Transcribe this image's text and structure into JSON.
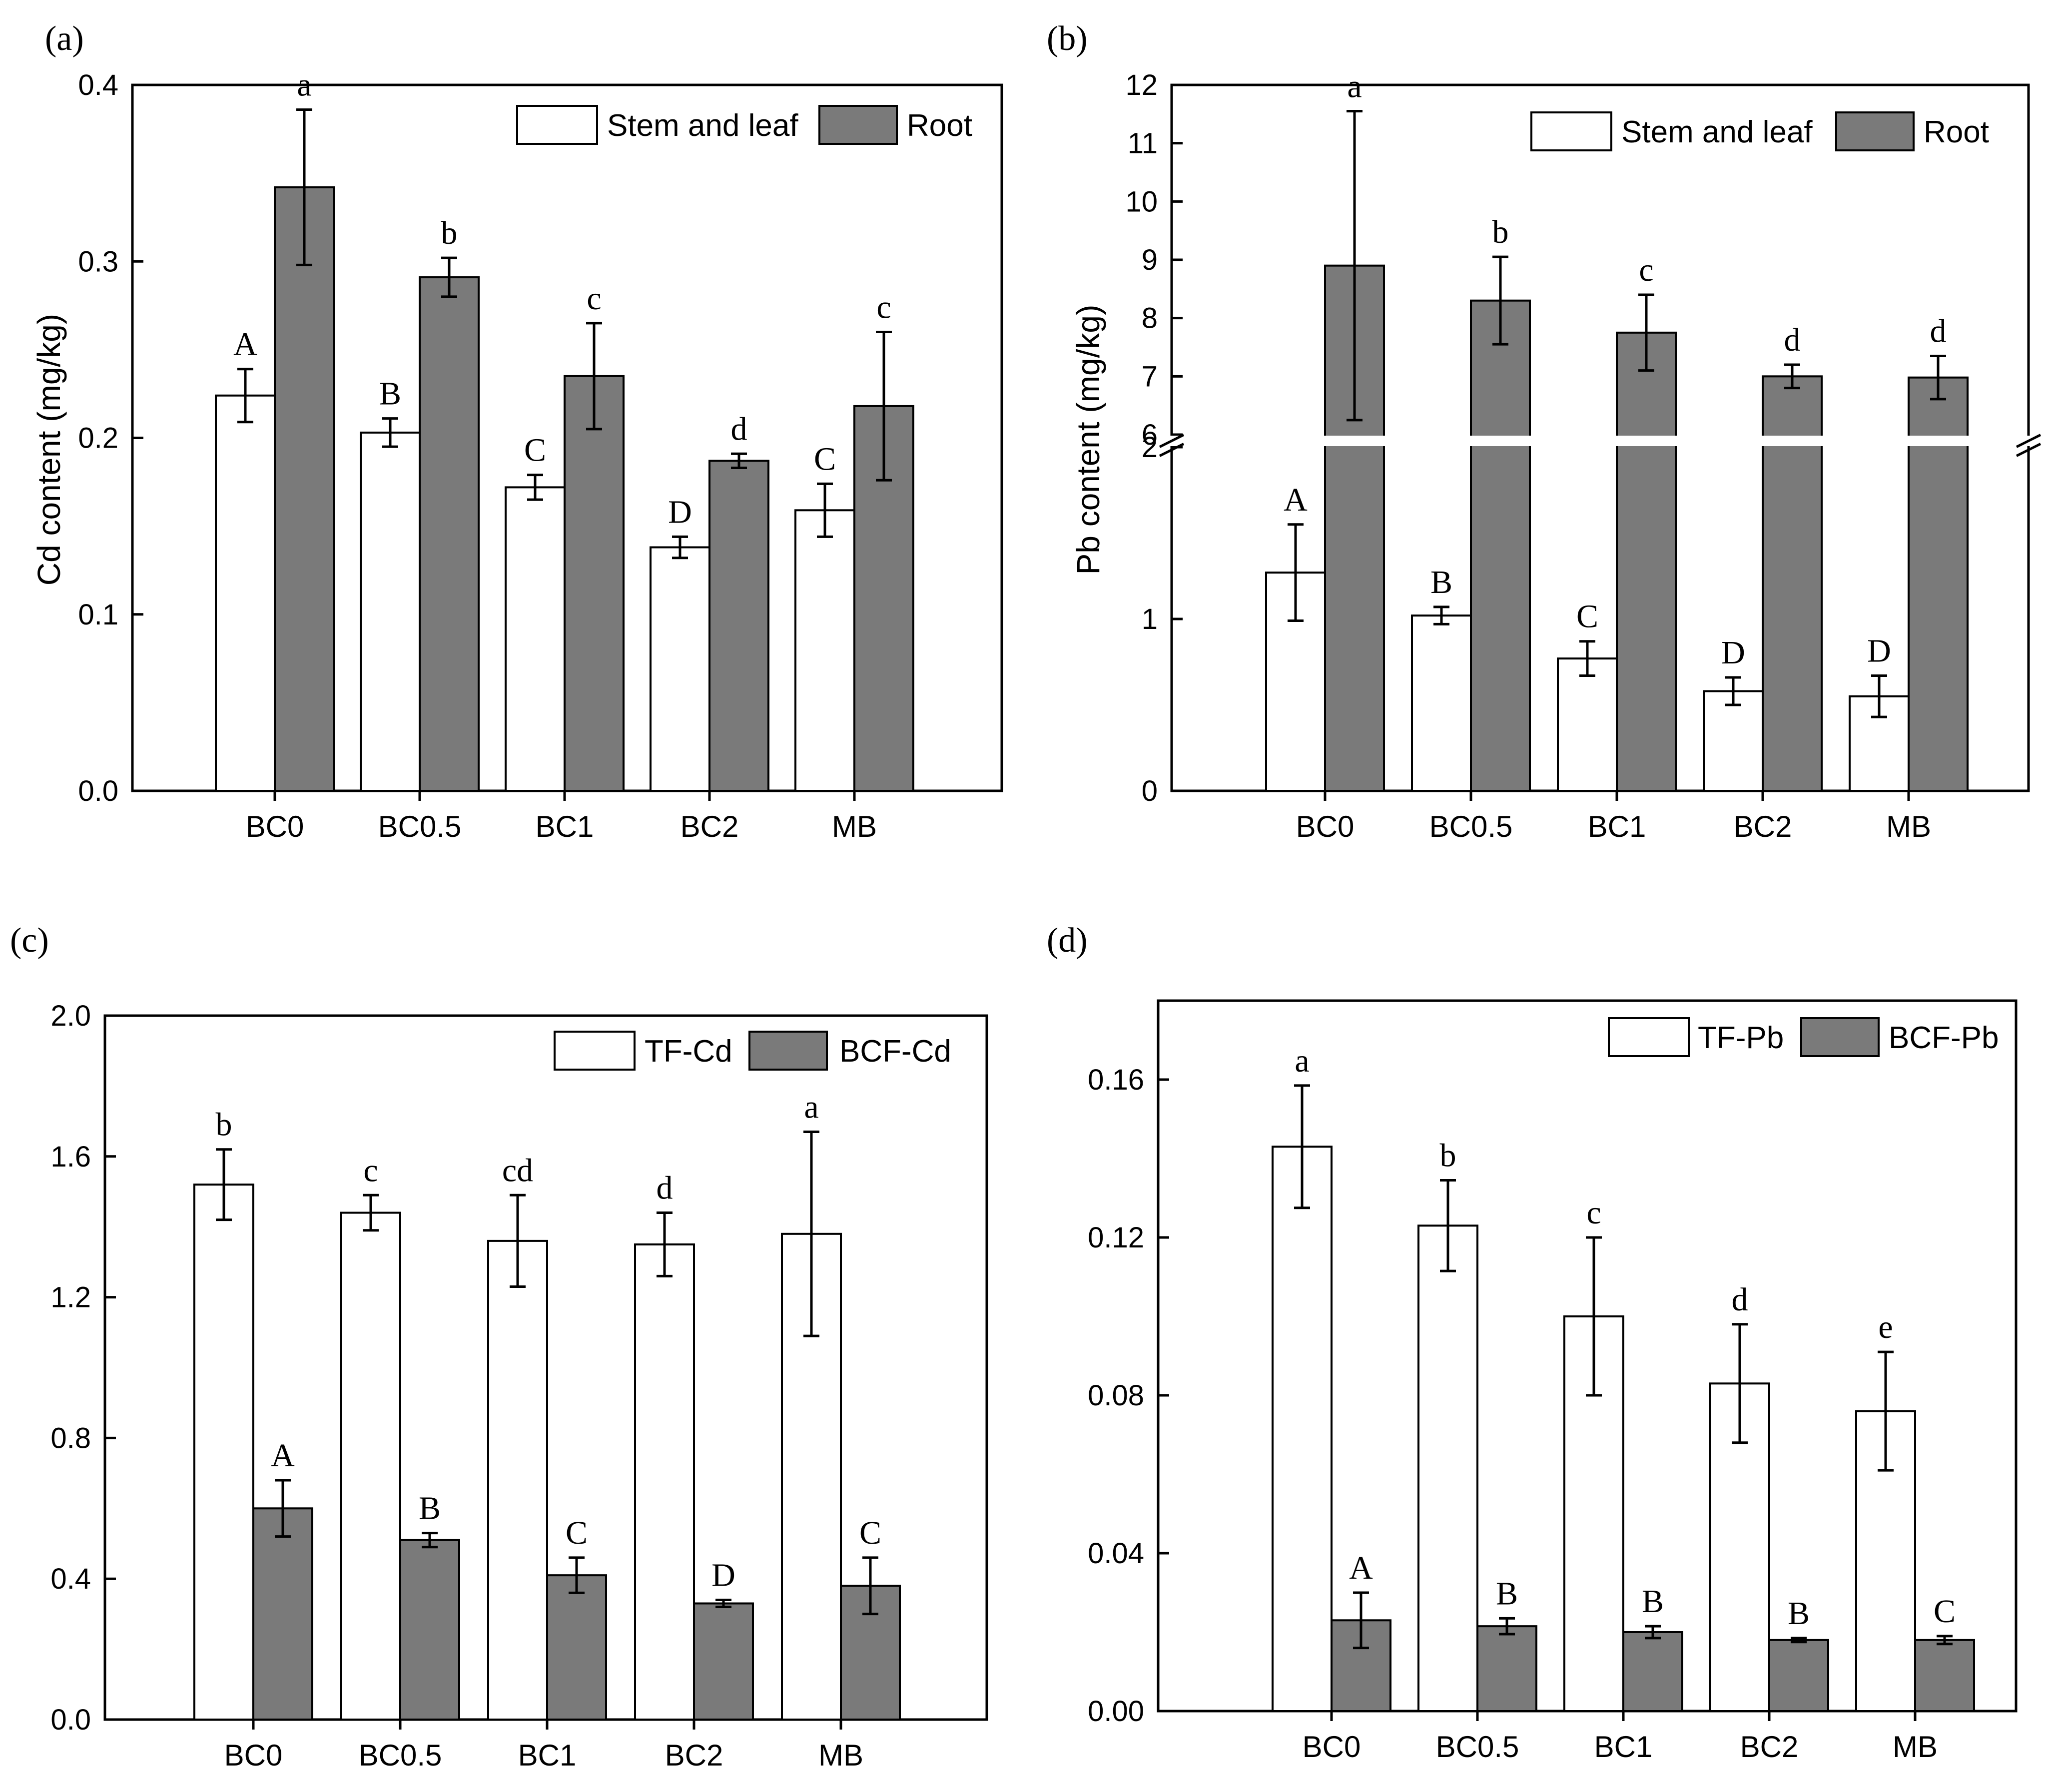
{
  "colors": {
    "bar_open": "#ffffff",
    "bar_filled": "#7a7a7a",
    "axis": "#000000"
  },
  "chart_data": [
    {
      "panel": "(a)",
      "type": "bar",
      "ylabel": "Cd content (mg/kg)",
      "xlabel": "",
      "categories": [
        "BC0",
        "BC0.5",
        "BC1",
        "BC2",
        "MB"
      ],
      "ylim": [
        0,
        0.4
      ],
      "yticks": [
        0.0,
        0.1,
        0.2,
        0.3,
        0.4
      ],
      "ytick_labels": [
        "0.0",
        "0.1",
        "0.2",
        "0.3",
        "0.4"
      ],
      "legend_position": "top-right",
      "series": [
        {
          "name": "Stem and leaf",
          "values": [
            0.224,
            0.203,
            0.172,
            0.138,
            0.159
          ],
          "errors": [
            0.015,
            0.008,
            0.007,
            0.006,
            0.015
          ],
          "letters": [
            "A",
            "B",
            "C",
            "D",
            "C"
          ]
        },
        {
          "name": "Root",
          "values": [
            0.342,
            0.291,
            0.235,
            0.187,
            0.218
          ],
          "errors": [
            0.044,
            0.011,
            0.03,
            0.004,
            0.042
          ],
          "letters": [
            "a",
            "b",
            "c",
            "d",
            "c"
          ]
        }
      ]
    },
    {
      "panel": "(b)",
      "type": "bar",
      "ylabel": "Pb content (mg/kg)",
      "xlabel": "",
      "categories": [
        "BC0",
        "BC0.5",
        "BC1",
        "BC2",
        "MB"
      ],
      "axis_break": {
        "lower_range": [
          0,
          2
        ],
        "upper_range": [
          6,
          12
        ]
      },
      "yticks": [
        0,
        1,
        2,
        6,
        7,
        8,
        9,
        10,
        11,
        12
      ],
      "ytick_labels": [
        "0",
        "1",
        "2",
        "6",
        "7",
        "8",
        "9",
        "10",
        "11",
        "12"
      ],
      "legend_position": "top-right",
      "series": [
        {
          "name": "Stem and leaf",
          "values": [
            1.27,
            1.02,
            0.77,
            0.58,
            0.55
          ],
          "errors": [
            0.28,
            0.05,
            0.1,
            0.08,
            0.12
          ],
          "letters": [
            "A",
            "B",
            "C",
            "D",
            "D"
          ]
        },
        {
          "name": "Root",
          "values": [
            8.9,
            8.3,
            7.75,
            7.0,
            6.98
          ],
          "errors": [
            2.65,
            0.75,
            0.65,
            0.2,
            0.37
          ],
          "letters": [
            "a",
            "b",
            "c",
            "d",
            "d"
          ]
        }
      ]
    },
    {
      "panel": "(c)",
      "type": "bar",
      "ylabel": "",
      "xlabel": "",
      "categories": [
        "BC0",
        "BC0.5",
        "BC1",
        "BC2",
        "MB"
      ],
      "ylim": [
        0,
        2.0
      ],
      "yticks": [
        0.0,
        0.4,
        0.8,
        1.2,
        1.6,
        2.0
      ],
      "ytick_labels": [
        "0.0",
        "0.4",
        "0.8",
        "1.2",
        "1.6",
        "2.0"
      ],
      "legend_position": "top-right",
      "series": [
        {
          "name": "TF-Cd",
          "values": [
            1.52,
            1.44,
            1.36,
            1.35,
            1.38
          ],
          "errors": [
            0.1,
            0.05,
            0.13,
            0.09,
            0.29
          ],
          "letters": [
            "b",
            "c",
            "cd",
            "d",
            "a"
          ]
        },
        {
          "name": "BCF-Cd",
          "values": [
            0.6,
            0.51,
            0.41,
            0.33,
            0.38
          ],
          "errors": [
            0.08,
            0.02,
            0.05,
            0.01,
            0.08
          ],
          "letters": [
            "A",
            "B",
            "C",
            "D",
            "C"
          ]
        }
      ]
    },
    {
      "panel": "(d)",
      "type": "bar",
      "ylabel": "",
      "xlabel": "",
      "categories": [
        "BC0",
        "BC0.5",
        "BC1",
        "BC2",
        "MB"
      ],
      "ylim": [
        0,
        0.18
      ],
      "yticks": [
        0.0,
        0.04,
        0.08,
        0.12,
        0.16
      ],
      "ytick_labels": [
        "0.00",
        "0.04",
        "0.08",
        "0.12",
        "0.16"
      ],
      "legend_position": "top-right",
      "series": [
        {
          "name": "TF-Pb",
          "values": [
            0.143,
            0.123,
            0.1,
            0.083,
            0.076
          ],
          "errors": [
            0.0155,
            0.0115,
            0.02,
            0.015,
            0.015
          ],
          "letters": [
            "a",
            "b",
            "c",
            "d",
            "e"
          ]
        },
        {
          "name": "BCF-Pb",
          "values": [
            0.023,
            0.0215,
            0.02,
            0.018,
            0.018
          ],
          "errors": [
            0.007,
            0.002,
            0.0015,
            0.0005,
            0.001
          ],
          "letters": [
            "A",
            "B",
            "B",
            "B",
            "C"
          ]
        }
      ]
    }
  ]
}
